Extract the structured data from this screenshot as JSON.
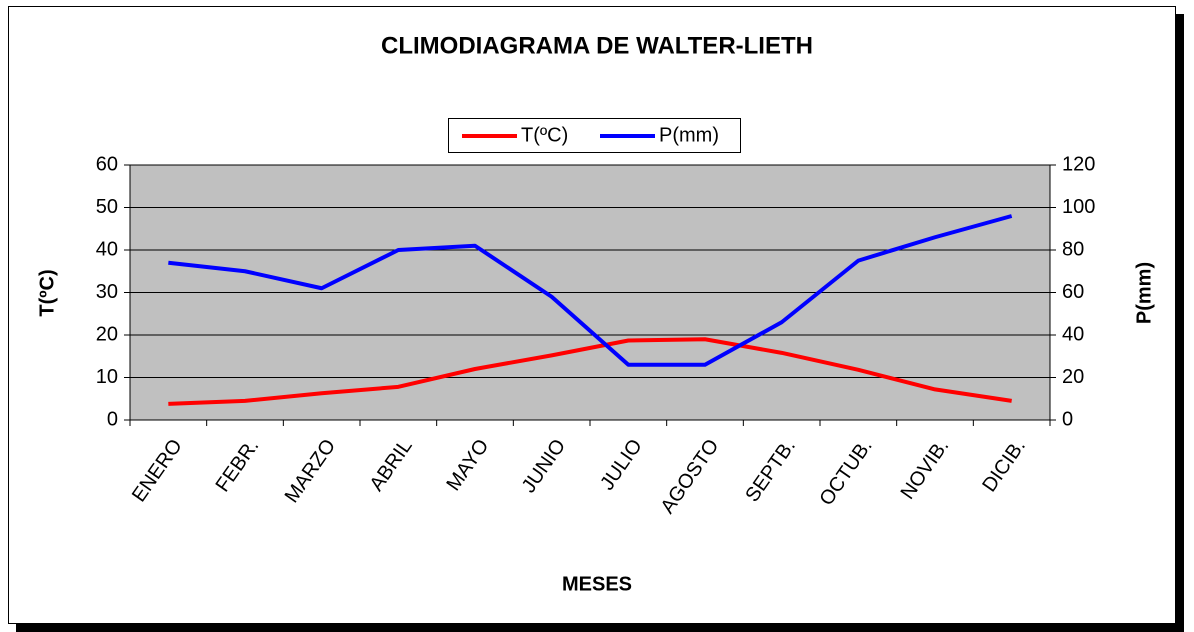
{
  "chart_data": {
    "type": "line",
    "title": "CLIMODIAGRAMA DE WALTER-LIETH",
    "xlabel": "MESES",
    "ylabel": "T(ºC)",
    "y2label": "P(mm)",
    "categories": [
      "ENERO",
      "FEBR.",
      "MARZO",
      "ABRIL",
      "MAYO",
      "JUNIO",
      "JULIO",
      "AGOSTO",
      "SEPTB.",
      "OCTUB.",
      "NOVIB.",
      "DICIB."
    ],
    "series": [
      {
        "name": "T(ºC)",
        "color": "#ff0000",
        "values": [
          3.8,
          4.5,
          6.3,
          7.8,
          12,
          15.2,
          18.7,
          19,
          15.8,
          11.8,
          7.2,
          4.5
        ]
      },
      {
        "name": "P(mm)",
        "color": "#0000ff",
        "axis": "y2",
        "values": [
          74,
          70,
          62,
          80,
          82,
          58,
          26,
          26,
          46,
          75,
          86,
          96
        ]
      }
    ],
    "ylim": [
      0,
      60
    ],
    "yticks": [
      0,
      10,
      20,
      30,
      40,
      50,
      60
    ],
    "y2lim": [
      0,
      120
    ],
    "y2ticks": [
      0,
      20,
      40,
      60,
      80,
      100,
      120
    ],
    "grid": true,
    "legend": "top",
    "plot_background": "#c0c0c0"
  }
}
